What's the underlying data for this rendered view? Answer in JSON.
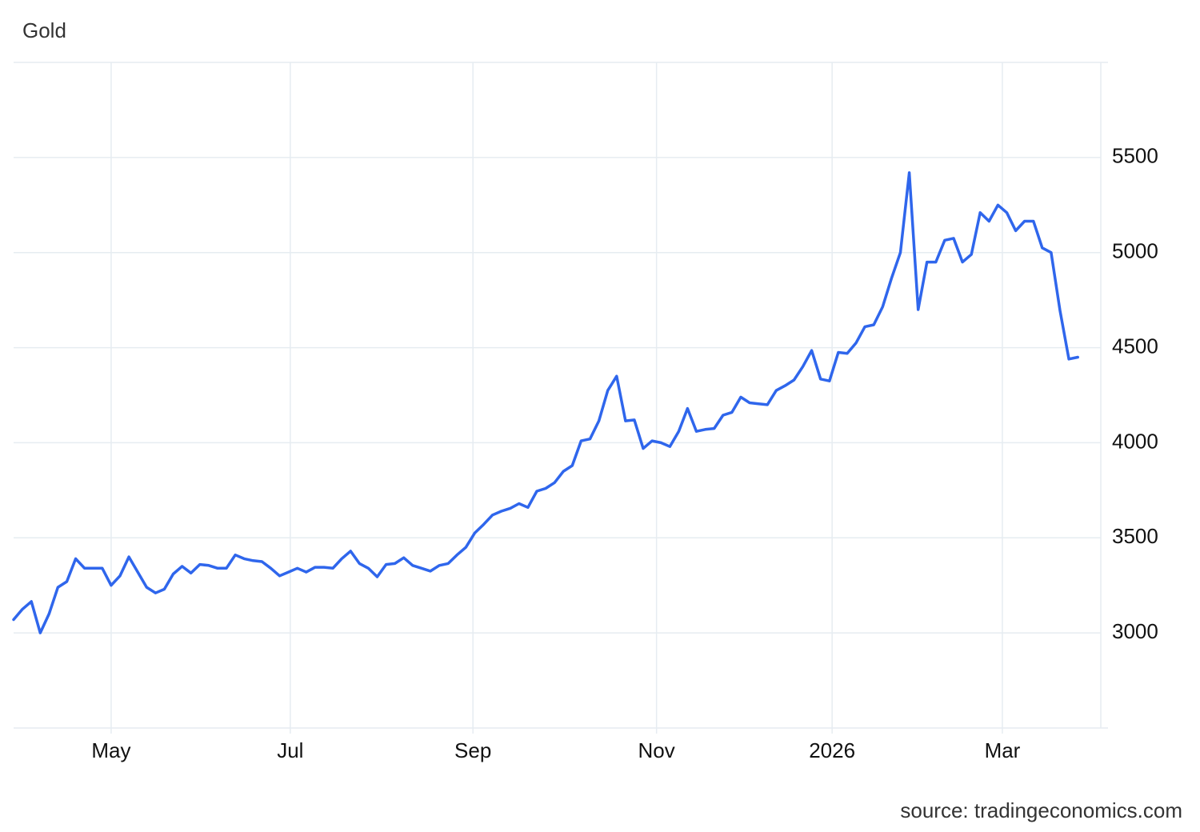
{
  "chart_data": {
    "type": "line",
    "title": "Gold",
    "source": "source: tradingeconomics.com",
    "color": "#2f66ec",
    "grid": true,
    "y_axis_side": "right",
    "values": [
      3070,
      3125,
      3165,
      3000,
      3100,
      3240,
      3270,
      3390,
      3340,
      3340,
      3340,
      3250,
      3300,
      3400,
      3320,
      3240,
      3210,
      3230,
      3310,
      3350,
      3315,
      3360,
      3355,
      3340,
      3340,
      3410,
      3390,
      3380,
      3375,
      3340,
      3300,
      3320,
      3340,
      3320,
      3345,
      3345,
      3340,
      3390,
      3430,
      3365,
      3340,
      3295,
      3360,
      3365,
      3395,
      3355,
      3340,
      3325,
      3355,
      3365,
      3410,
      3450,
      3525,
      3570,
      3620,
      3640,
      3655,
      3680,
      3660,
      3745,
      3760,
      3790,
      3850,
      3880,
      4010,
      4020,
      4115,
      4275,
      4350,
      4115,
      4120,
      3970,
      4010,
      4000,
      3980,
      4060,
      4180,
      4060,
      4070,
      4075,
      4145,
      4160,
      4240,
      4210,
      4205,
      4200,
      4275,
      4300,
      4330,
      4400,
      4485,
      4335,
      4325,
      4475,
      4470,
      4525,
      4610,
      4620,
      4715,
      4865,
      5000,
      5420,
      4700,
      4950,
      4950,
      5065,
      5075,
      4950,
      4990,
      5210,
      5165,
      5250,
      5210,
      5115,
      5165,
      5165,
      5025,
      5000,
      4695,
      4440,
      4450
    ],
    "xlim": [
      0,
      122.6
    ],
    "xticks": [
      {
        "value": 11,
        "label": "May"
      },
      {
        "value": 31.2,
        "label": "Jul"
      },
      {
        "value": 51.8,
        "label": "Sep"
      },
      {
        "value": 72.5,
        "label": "Nov"
      },
      {
        "value": 92.3,
        "label": "2026"
      },
      {
        "value": 111.5,
        "label": "Mar"
      }
    ],
    "ylim": [
      2500,
      6000
    ],
    "yticks": [
      3000,
      3500,
      4000,
      4500,
      5000,
      5500
    ]
  }
}
